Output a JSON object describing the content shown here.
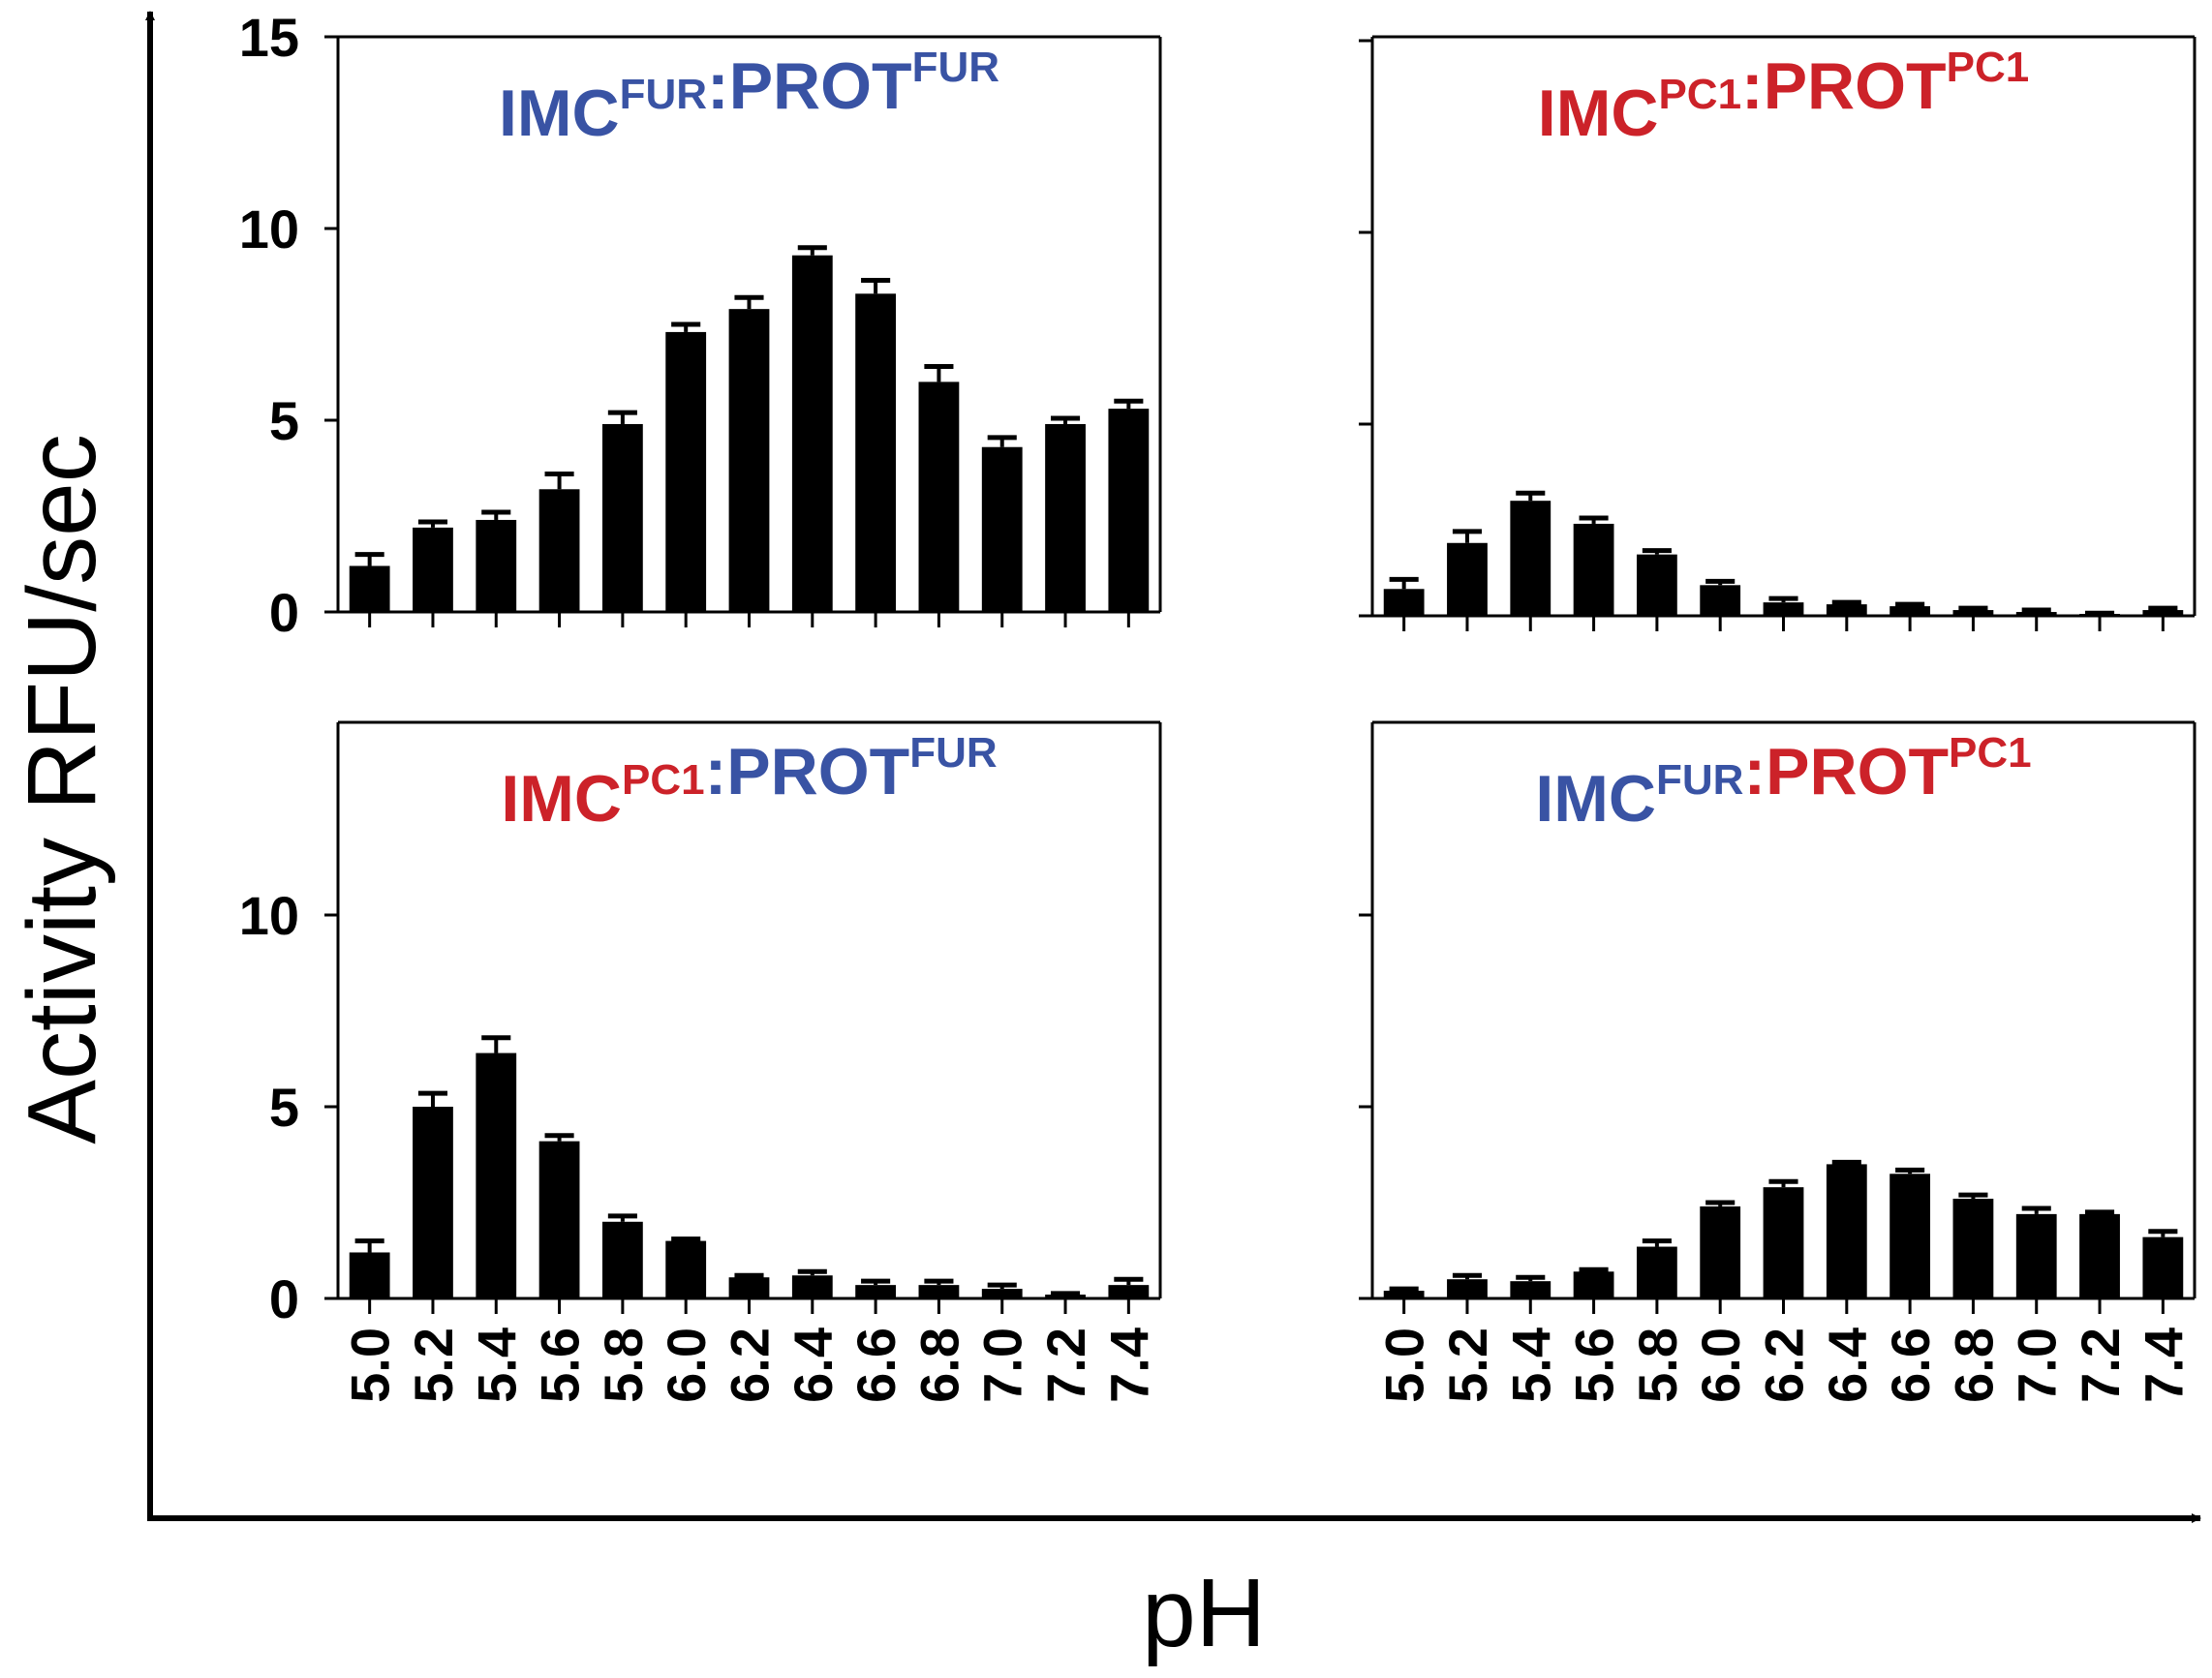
{
  "colors": {
    "furin": "#3953a4",
    "pc1": "#cc2229",
    "bar": "#000000"
  },
  "axes": {
    "ylabel": "Activity RFU/sec",
    "xlabel": "pH"
  },
  "chart_data": [
    {
      "type": "bar",
      "panel": "top-left",
      "title": [
        {
          "text": "IMC",
          "sup": "FUR",
          "color_key": "furin"
        },
        {
          "text": ":"
        },
        {
          "text": "PROT",
          "sup": "FUR",
          "color_key": "furin"
        }
      ],
      "categories": [
        "5.0",
        "5.2",
        "5.4",
        "5.6",
        "5.8",
        "6.0",
        "6.2",
        "6.4",
        "6.6",
        "6.8",
        "7.0",
        "7.2",
        "7.4"
      ],
      "values": [
        1.2,
        2.2,
        2.4,
        3.2,
        4.9,
        7.3,
        7.9,
        9.3,
        8.3,
        6.0,
        4.3,
        4.9,
        5.3
      ],
      "errors": [
        0.3,
        0.15,
        0.2,
        0.4,
        0.3,
        0.2,
        0.3,
        0.2,
        0.35,
        0.4,
        0.25,
        0.15,
        0.2
      ],
      "ylim": [
        0,
        15
      ],
      "yticks": [
        "0",
        "5",
        "10",
        "15"
      ],
      "show_ytick_labels": true,
      "show_category_labels": false
    },
    {
      "type": "bar",
      "panel": "top-right",
      "title": [
        {
          "text": "IMC",
          "sup": "PC1",
          "color_key": "pc1"
        },
        {
          "text": ":"
        },
        {
          "text": "PROT",
          "sup": "PC1",
          "color_key": "pc1"
        }
      ],
      "categories": [
        "5.0",
        "5.2",
        "5.4",
        "5.6",
        "5.8",
        "6.0",
        "6.2",
        "6.4",
        "6.6",
        "6.8",
        "7.0",
        "7.2",
        "7.4"
      ],
      "values": [
        0.7,
        1.9,
        3.0,
        2.4,
        1.6,
        0.8,
        0.35,
        0.3,
        0.25,
        0.15,
        0.1,
        0.05,
        0.15
      ],
      "errors": [
        0.25,
        0.3,
        0.2,
        0.15,
        0.1,
        0.1,
        0.1,
        0.05,
        0.05,
        0.05,
        0.05,
        0.02,
        0.05
      ],
      "ylim": [
        0,
        15
      ],
      "yticks": [
        "0",
        "5",
        "10",
        "15"
      ],
      "show_ytick_labels": false,
      "show_category_labels": false
    },
    {
      "type": "bar",
      "panel": "bottom-left",
      "title": [
        {
          "text": "IMC",
          "sup": "PC1",
          "color_key": "pc1"
        },
        {
          "text": ":"
        },
        {
          "text": "PROT",
          "sup": "FUR",
          "color_key": "furin"
        }
      ],
      "categories": [
        "5.0",
        "5.2",
        "5.4",
        "5.6",
        "5.8",
        "6.0",
        "6.2",
        "6.4",
        "6.6",
        "6.8",
        "7.0",
        "7.2",
        "7.4"
      ],
      "values": [
        1.2,
        5.0,
        6.4,
        4.1,
        2.0,
        1.5,
        0.55,
        0.6,
        0.35,
        0.35,
        0.25,
        0.1,
        0.35
      ],
      "errors": [
        0.3,
        0.35,
        0.4,
        0.15,
        0.15,
        0.05,
        0.05,
        0.1,
        0.1,
        0.1,
        0.1,
        0.03,
        0.15
      ],
      "ylim": [
        0,
        15
      ],
      "yticks": [
        "0",
        "5",
        "10"
      ],
      "show_ytick_labels": true,
      "show_category_labels": true
    },
    {
      "type": "bar",
      "panel": "bottom-right",
      "title": [
        {
          "text": "IMC",
          "sup": "FUR",
          "color_key": "furin"
        },
        {
          "text": ":"
        },
        {
          "text": "PROT",
          "sup": "PC1",
          "color_key": "pc1"
        }
      ],
      "categories": [
        "5.0",
        "5.2",
        "5.4",
        "5.6",
        "5.8",
        "6.0",
        "6.2",
        "6.4",
        "6.6",
        "6.8",
        "7.0",
        "7.2",
        "7.4"
      ],
      "values": [
        0.2,
        0.5,
        0.45,
        0.7,
        1.35,
        2.4,
        2.9,
        3.5,
        3.25,
        2.6,
        2.2,
        2.2,
        1.6
      ],
      "errors": [
        0.05,
        0.1,
        0.1,
        0.05,
        0.15,
        0.1,
        0.15,
        0.05,
        0.1,
        0.1,
        0.15,
        0.05,
        0.15
      ],
      "ylim": [
        0,
        15
      ],
      "yticks": [
        "0",
        "5",
        "10"
      ],
      "show_ytick_labels": false,
      "show_category_labels": true
    }
  ]
}
